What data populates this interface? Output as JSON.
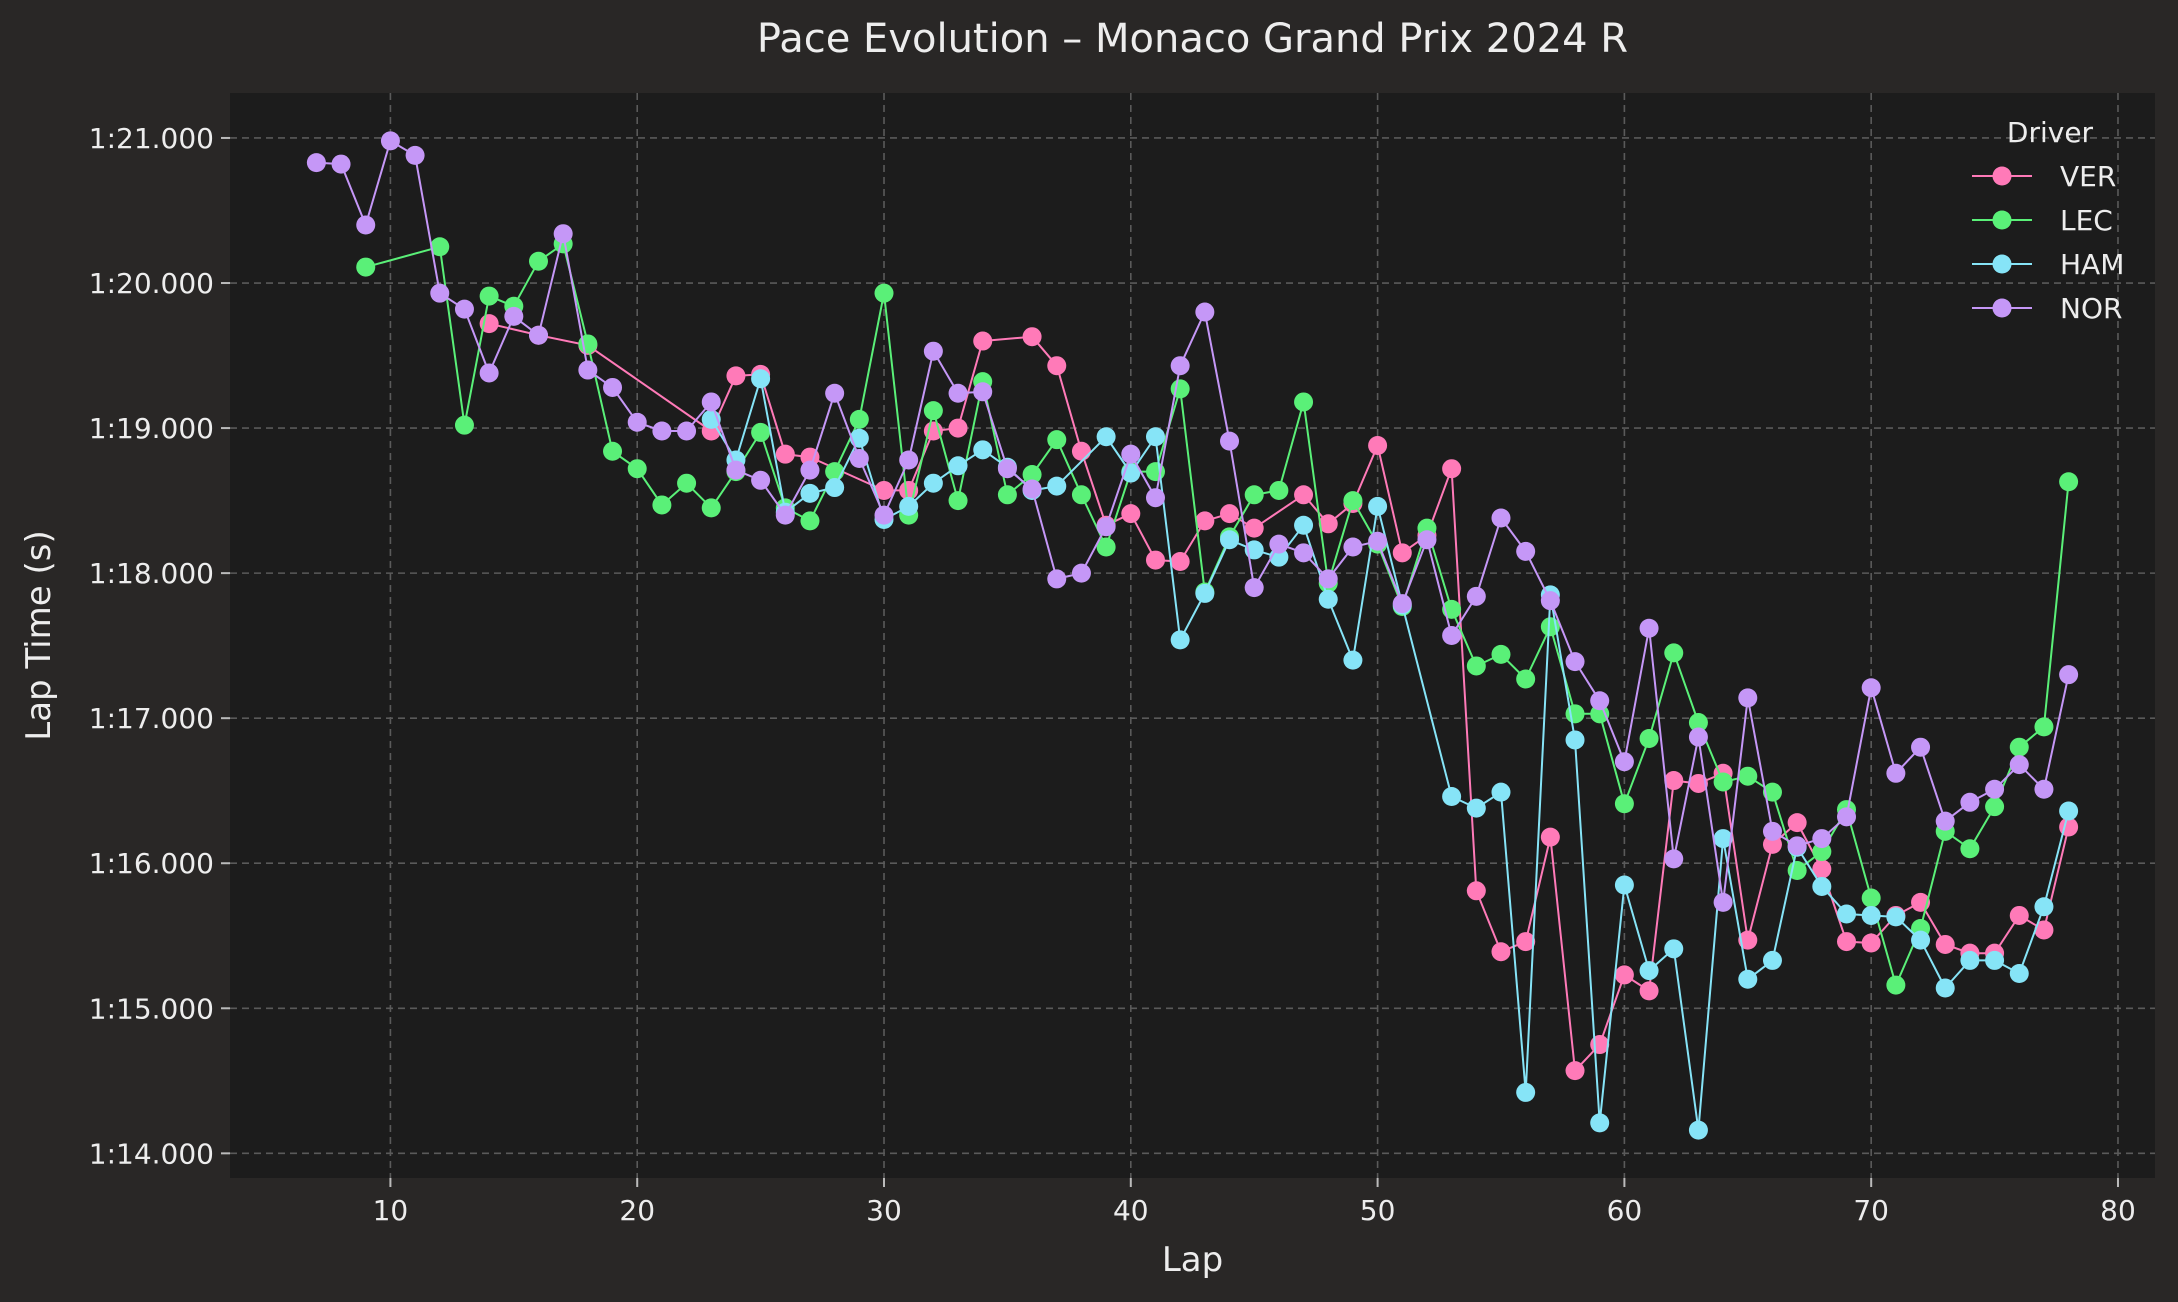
{
  "chart_data": {
    "type": "line",
    "title": "Pace Evolution – Monaco Grand Prix 2024 R",
    "xlabel": "Lap",
    "ylabel": "Lap Time (s)",
    "xlim": [
      3.5,
      81.5
    ],
    "ylim": [
      73.83,
      81.31
    ],
    "x_ticks": [
      10,
      20,
      30,
      40,
      50,
      60,
      70,
      80
    ],
    "y_ticks": [
      74,
      75,
      76,
      77,
      78,
      79,
      80,
      81
    ],
    "y_tick_labels": [
      "1:14.000",
      "1:15.000",
      "1:16.000",
      "1:17.000",
      "1:18.000",
      "1:19.000",
      "1:20.000",
      "1:21.000"
    ],
    "grid": true,
    "legend": {
      "title": "Driver",
      "placement": "top-right"
    },
    "colors": {
      "background": "#292726",
      "plot_background": "#1c1c1c"
    },
    "series": [
      {
        "name": "VER",
        "color": "#ff7ab8",
        "x": [
          14,
          16,
          18,
          23,
          24,
          25,
          26,
          27,
          30,
          31,
          32,
          33,
          34,
          36,
          37,
          38,
          39,
          40,
          41,
          42,
          43,
          44,
          45,
          47,
          48,
          49,
          50,
          51,
          52,
          53,
          54,
          55,
          56,
          57,
          58,
          59,
          60,
          61,
          62,
          63,
          64,
          65,
          66,
          67,
          68,
          69,
          70,
          71,
          72,
          73,
          74,
          75,
          76,
          77,
          78
        ],
        "y": [
          79.72,
          79.64,
          79.57,
          78.98,
          79.36,
          79.37,
          78.82,
          78.8,
          78.57,
          78.57,
          78.98,
          79.0,
          79.6,
          79.63,
          79.43,
          78.84,
          78.33,
          78.41,
          78.09,
          78.08,
          78.36,
          78.41,
          78.31,
          78.54,
          78.34,
          78.48,
          78.88,
          78.14,
          78.26,
          78.72,
          75.81,
          75.39,
          75.46,
          76.18,
          74.57,
          74.75,
          75.23,
          75.12,
          76.57,
          76.55,
          76.62,
          75.47,
          76.13,
          76.28,
          75.96,
          75.46,
          75.45,
          75.64,
          75.73,
          75.44,
          75.38,
          75.38,
          75.64,
          75.54,
          76.25
        ]
      },
      {
        "name": "LEC",
        "color": "#5af078",
        "x": [
          9,
          12,
          13,
          14,
          15,
          16,
          17,
          18,
          19,
          20,
          21,
          22,
          23,
          24,
          25,
          26,
          27,
          28,
          29,
          30,
          31,
          32,
          33,
          34,
          35,
          36,
          37,
          38,
          39,
          40,
          41,
          42,
          43,
          44,
          45,
          46,
          47,
          48,
          49,
          50,
          51,
          52,
          53,
          54,
          55,
          56,
          57,
          58,
          59,
          60,
          61,
          62,
          63,
          64,
          65,
          66,
          67,
          68,
          69,
          70,
          71,
          72,
          73,
          74,
          75,
          76,
          77,
          78
        ],
        "y": [
          80.11,
          80.25,
          79.02,
          79.91,
          79.84,
          80.15,
          80.27,
          79.58,
          78.84,
          78.72,
          78.47,
          78.62,
          78.45,
          78.7,
          78.97,
          78.45,
          78.36,
          78.7,
          79.06,
          79.93,
          78.4,
          79.12,
          78.5,
          79.32,
          78.54,
          78.68,
          78.92,
          78.54,
          78.18,
          78.7,
          78.7,
          79.27,
          77.87,
          78.25,
          78.54,
          78.57,
          79.18,
          77.93,
          78.5,
          78.2,
          77.77,
          78.31,
          77.75,
          77.36,
          77.44,
          77.27,
          77.63,
          77.03,
          77.03,
          76.41,
          76.86,
          77.45,
          76.97,
          76.56,
          76.6,
          76.49,
          75.95,
          76.08,
          76.37,
          75.76,
          75.16,
          75.55,
          76.22,
          76.1,
          76.39,
          76.8,
          76.94,
          78.63
        ]
      },
      {
        "name": "HAM",
        "color": "#86e4f7",
        "x": [
          23,
          24,
          25,
          26,
          27,
          28,
          29,
          30,
          31,
          32,
          33,
          34,
          35,
          36,
          37,
          39,
          40,
          41,
          42,
          43,
          44,
          45,
          46,
          47,
          48,
          49,
          50,
          51,
          53,
          54,
          55,
          56,
          57,
          58,
          59,
          60,
          61,
          62,
          63,
          64,
          65,
          66,
          67,
          68,
          69,
          70,
          71,
          72,
          73,
          74,
          75,
          76,
          77,
          78
        ],
        "y": [
          79.06,
          78.78,
          79.34,
          78.42,
          78.55,
          78.59,
          78.93,
          78.37,
          78.46,
          78.62,
          78.74,
          78.85,
          78.73,
          78.57,
          78.6,
          78.94,
          78.69,
          78.94,
          77.54,
          77.86,
          78.23,
          78.16,
          78.11,
          78.33,
          77.82,
          77.4,
          78.46,
          77.78,
          76.46,
          76.38,
          76.49,
          74.42,
          77.85,
          76.85,
          74.21,
          75.85,
          75.26,
          75.41,
          74.16,
          76.17,
          75.2,
          75.33,
          76.11,
          75.84,
          75.65,
          75.64,
          75.63,
          75.47,
          75.14,
          75.33,
          75.33,
          75.24,
          75.7,
          76.36
        ]
      },
      {
        "name": "NOR",
        "color": "#c597f7",
        "x": [
          7,
          8,
          9,
          10,
          11,
          12,
          13,
          14,
          15,
          16,
          17,
          18,
          19,
          20,
          21,
          22,
          23,
          24,
          25,
          26,
          27,
          28,
          29,
          30,
          31,
          32,
          33,
          34,
          35,
          36,
          37,
          38,
          39,
          40,
          41,
          42,
          43,
          44,
          45,
          46,
          47,
          48,
          49,
          50,
          51,
          52,
          53,
          54,
          55,
          56,
          57,
          58,
          59,
          60,
          61,
          62,
          63,
          64,
          65,
          66,
          67,
          68,
          69,
          70,
          71,
          72,
          73,
          74,
          75,
          76,
          77,
          78
        ],
        "y": [
          80.83,
          80.82,
          80.4,
          80.98,
          80.88,
          79.93,
          79.82,
          79.38,
          79.77,
          79.64,
          80.34,
          79.4,
          79.28,
          79.04,
          78.98,
          78.98,
          79.18,
          78.71,
          78.64,
          78.4,
          78.71,
          79.24,
          78.79,
          78.4,
          78.78,
          79.53,
          79.24,
          79.25,
          78.72,
          78.58,
          77.96,
          78.0,
          78.32,
          78.82,
          78.52,
          79.43,
          79.8,
          78.91,
          77.9,
          78.2,
          78.14,
          77.96,
          78.18,
          78.22,
          77.79,
          78.23,
          77.57,
          77.84,
          78.38,
          78.15,
          77.81,
          77.39,
          77.12,
          76.7,
          77.62,
          76.03,
          76.87,
          75.73,
          77.14,
          76.22,
          76.12,
          76.17,
          76.32,
          77.21,
          76.62,
          76.8,
          76.29,
          76.42,
          76.51,
          76.68,
          76.51,
          77.3
        ]
      }
    ]
  }
}
